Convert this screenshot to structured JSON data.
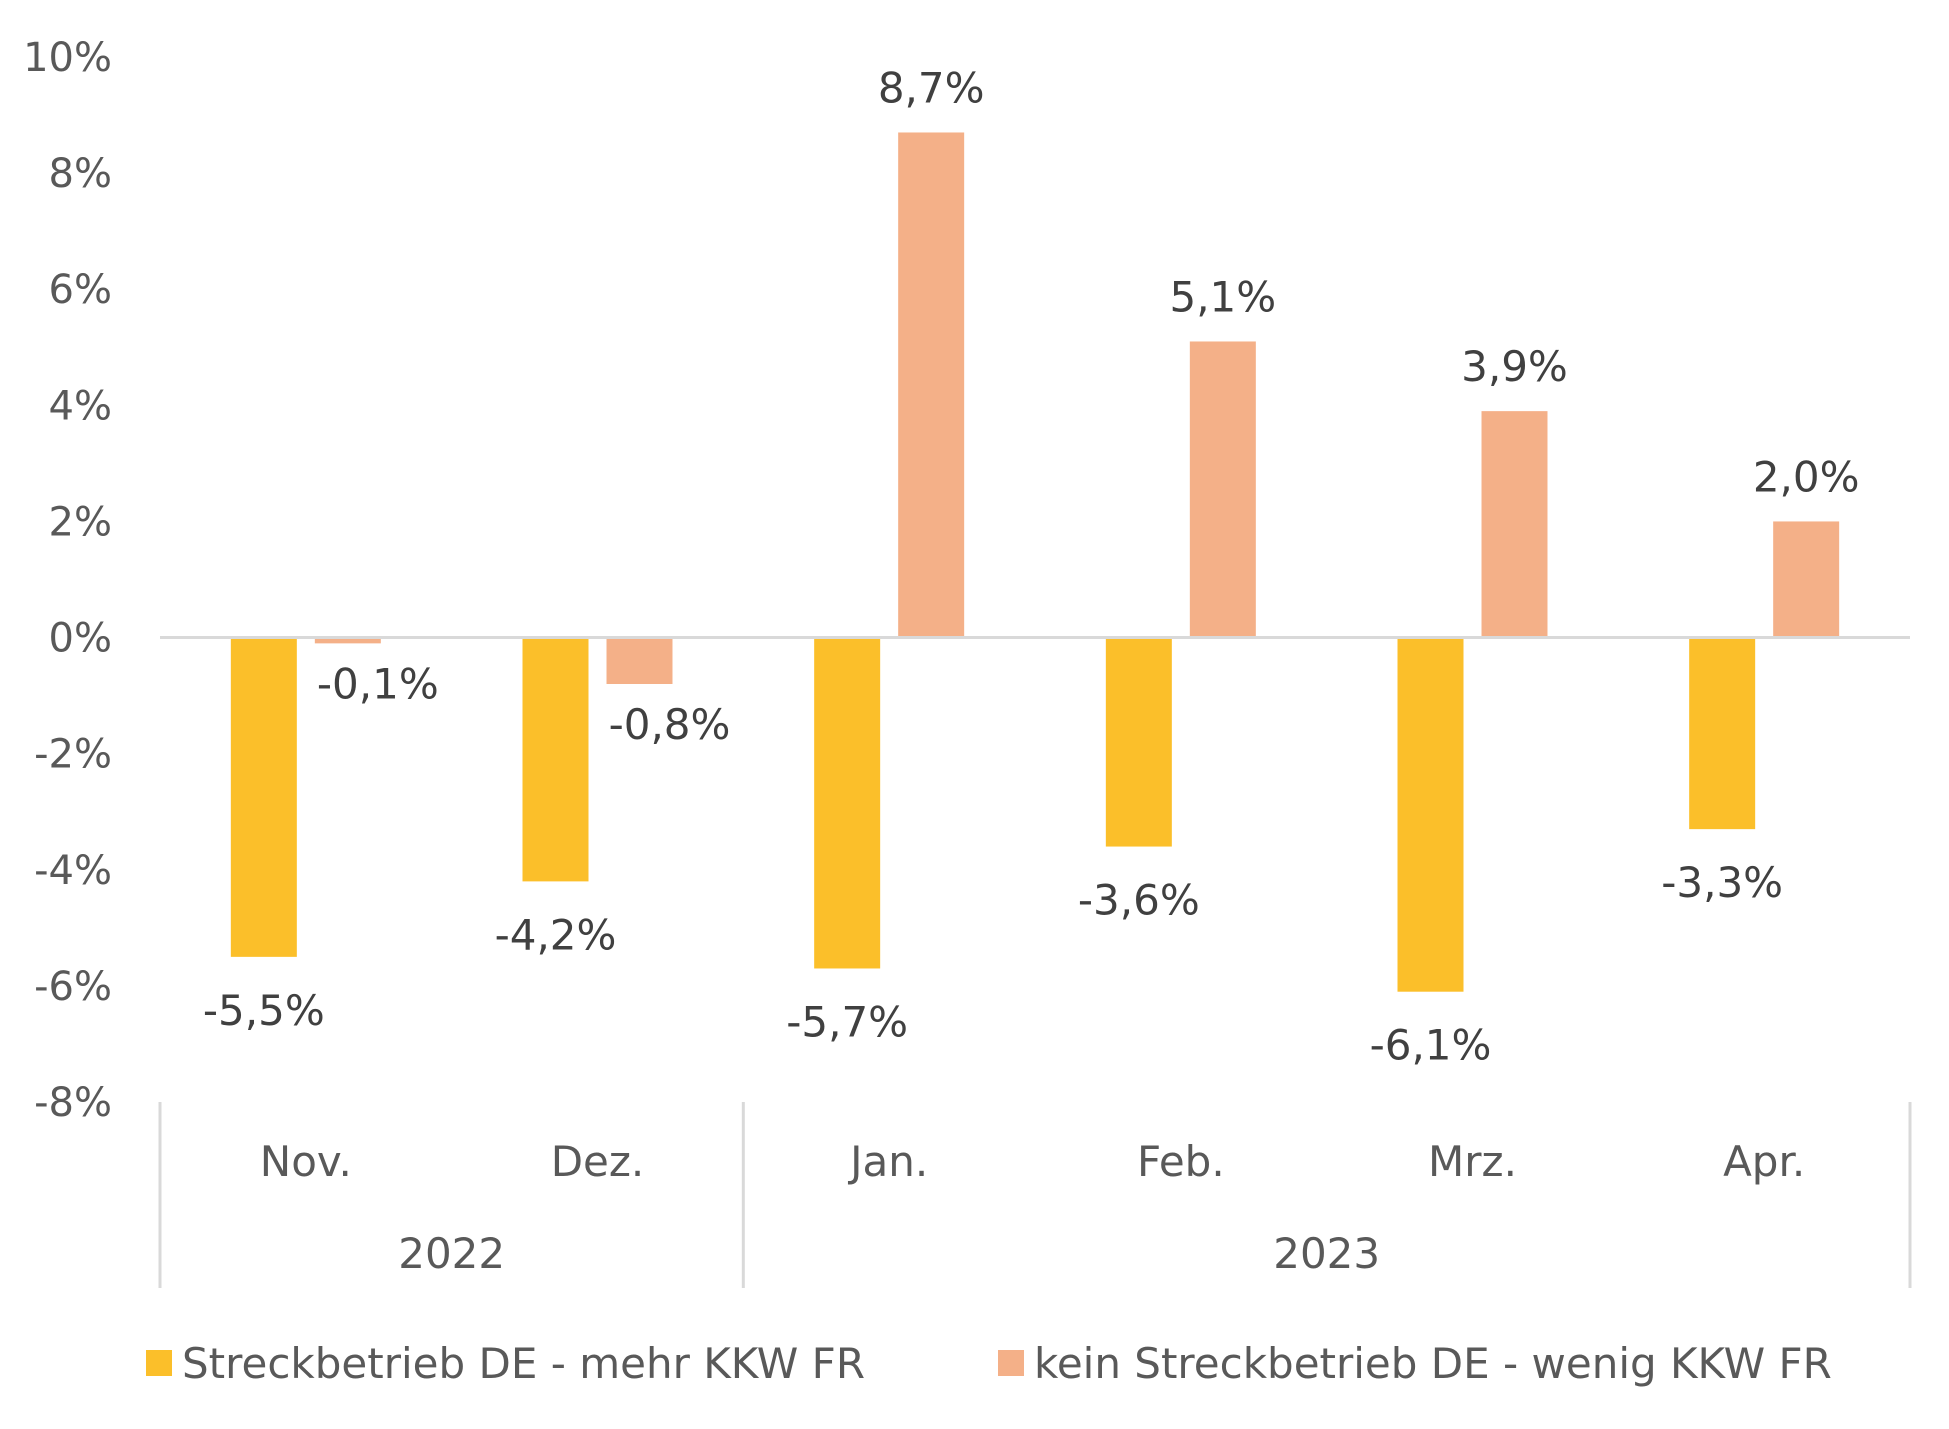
{
  "chart_data": {
    "type": "bar",
    "categories": [
      "Nov.",
      "Dez.",
      "Jan.",
      "Feb.",
      "Mrz.",
      "Apr."
    ],
    "groups": [
      {
        "label": "2022",
        "categories": [
          "Nov.",
          "Dez."
        ]
      },
      {
        "label": "2023",
        "categories": [
          "Jan.",
          "Feb.",
          "Mrz.",
          "Apr."
        ]
      }
    ],
    "series": [
      {
        "name": "Streckbetrieb DE - mehr KKW FR",
        "color": "#FBBF2A",
        "values": [
          -5.5,
          -4.2,
          -5.7,
          -3.6,
          -6.1,
          -3.3
        ],
        "labels": [
          "-5,5%",
          "-4,2%",
          "-5,7%",
          "-3,6%",
          "-6,1%",
          "-3,3%"
        ]
      },
      {
        "name": "kein Streckbetrieb DE - wenig KKW FR",
        "color": "#F4B088",
        "values": [
          -0.1,
          -0.8,
          8.7,
          5.1,
          3.9,
          2.0
        ],
        "labels": [
          "-0,1%",
          "-0,8%",
          "8,7%",
          "5,1%",
          "3,9%",
          "2,0%"
        ]
      }
    ],
    "y_ticks": [
      10,
      8,
      6,
      4,
      2,
      0,
      -2,
      -4,
      -6,
      -8
    ],
    "y_tick_labels": [
      "10%",
      "8%",
      "6%",
      "4%",
      "2%",
      "0%",
      "-2%",
      "-4%",
      "-6%",
      "-8%"
    ],
    "ylim": [
      -8,
      10
    ],
    "grid": false,
    "legend_position": "bottom"
  }
}
